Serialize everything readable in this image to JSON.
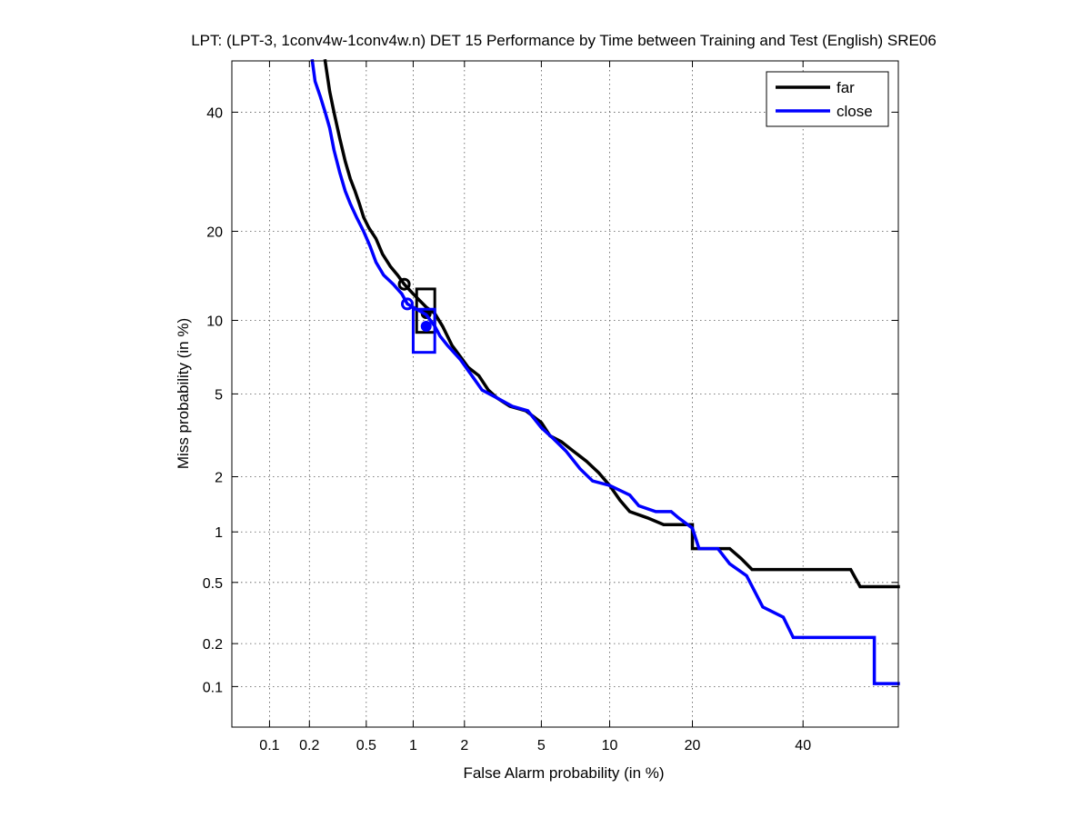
{
  "chart_data": {
    "type": "line",
    "title": "LPT: (LPT-3, 1conv4w-1conv4w.n) DET 15 Performance by Time between Training and Test (English) SRE06",
    "xlabel": "False Alarm probability (in %)",
    "ylabel": "Miss probability (in %)",
    "x_scale": "normal-deviate",
    "y_scale": "normal-deviate",
    "xlim": [
      0.05,
      60
    ],
    "ylim": [
      0.05,
      50
    ],
    "x_ticks": [
      0.1,
      0.2,
      0.5,
      1,
      2,
      5,
      10,
      20,
      40
    ],
    "x_tick_labels": [
      "0.1",
      "0.2",
      "0.5",
      "1",
      "2",
      "5",
      "10",
      "20",
      "40"
    ],
    "y_ticks": [
      0.1,
      0.2,
      0.5,
      1,
      2,
      5,
      10,
      20,
      40
    ],
    "y_tick_labels": [
      "0.1",
      "0.2",
      "0.5",
      "1",
      "2",
      "5",
      "10",
      "20",
      "40"
    ],
    "grid": true,
    "legend_position": "top-right",
    "series": [
      {
        "name": "far",
        "color": "#000000",
        "points": [
          [
            0.26,
            50
          ],
          [
            0.28,
            44
          ],
          [
            0.3,
            40
          ],
          [
            0.33,
            35
          ],
          [
            0.36,
            31
          ],
          [
            0.39,
            28
          ],
          [
            0.42,
            26
          ],
          [
            0.45,
            24
          ],
          [
            0.48,
            22
          ],
          [
            0.52,
            20.5
          ],
          [
            0.58,
            19
          ],
          [
            0.64,
            17
          ],
          [
            0.72,
            15.5
          ],
          [
            0.8,
            14.5
          ],
          [
            0.88,
            13.5
          ],
          [
            1.0,
            12.5
          ],
          [
            1.1,
            11.8
          ],
          [
            1.2,
            11.2
          ],
          [
            1.35,
            10.6
          ],
          [
            1.5,
            9.5
          ],
          [
            1.7,
            8.0
          ],
          [
            1.9,
            7.2
          ],
          [
            2.1,
            6.5
          ],
          [
            2.4,
            6.0
          ],
          [
            2.7,
            5.2
          ],
          [
            3.0,
            4.8
          ],
          [
            3.5,
            4.4
          ],
          [
            4.2,
            4.2
          ],
          [
            5.0,
            3.7
          ],
          [
            5.5,
            3.2
          ],
          [
            6.2,
            3.0
          ],
          [
            7.0,
            2.7
          ],
          [
            8.0,
            2.4
          ],
          [
            9.0,
            2.1
          ],
          [
            10.0,
            1.8
          ],
          [
            11.0,
            1.5
          ],
          [
            12.0,
            1.3
          ],
          [
            14.0,
            1.2
          ],
          [
            16.0,
            1.1
          ],
          [
            20.0,
            1.1
          ],
          [
            20.0,
            0.8
          ],
          [
            26.0,
            0.8
          ],
          [
            28.0,
            0.7
          ],
          [
            30.0,
            0.6
          ],
          [
            50.0,
            0.6
          ],
          [
            52.0,
            0.47
          ],
          [
            60.0,
            0.47
          ]
        ],
        "operating_point": [
          0.88,
          13.5
        ],
        "min_dcf_point": [
          1.2,
          10.6
        ],
        "confidence_box": [
          1.05,
          1.35,
          9.0,
          13.0
        ]
      },
      {
        "name": "close",
        "color": "#0000ff",
        "points": [
          [
            0.21,
            50
          ],
          [
            0.22,
            46
          ],
          [
            0.24,
            43
          ],
          [
            0.26,
            40
          ],
          [
            0.28,
            37
          ],
          [
            0.3,
            33
          ],
          [
            0.33,
            29
          ],
          [
            0.36,
            26
          ],
          [
            0.39,
            24
          ],
          [
            0.43,
            22
          ],
          [
            0.48,
            20
          ],
          [
            0.53,
            18
          ],
          [
            0.58,
            16
          ],
          [
            0.65,
            14.5
          ],
          [
            0.75,
            13.5
          ],
          [
            0.85,
            12.5
          ],
          [
            0.92,
            11.5
          ],
          [
            1.05,
            11.0
          ],
          [
            1.2,
            10.5
          ],
          [
            1.35,
            9.5
          ],
          [
            1.45,
            8.7
          ],
          [
            1.6,
            8.0
          ],
          [
            1.9,
            7.0
          ],
          [
            2.2,
            6.0
          ],
          [
            2.5,
            5.2
          ],
          [
            3.0,
            4.8
          ],
          [
            3.6,
            4.4
          ],
          [
            4.3,
            4.2
          ],
          [
            5.0,
            3.5
          ],
          [
            5.7,
            3.1
          ],
          [
            6.5,
            2.7
          ],
          [
            7.5,
            2.2
          ],
          [
            8.5,
            1.9
          ],
          [
            10.0,
            1.8
          ],
          [
            12.0,
            1.6
          ],
          [
            13.0,
            1.4
          ],
          [
            15.0,
            1.3
          ],
          [
            17.0,
            1.3
          ],
          [
            18.0,
            1.2
          ],
          [
            20.0,
            1.05
          ],
          [
            21.0,
            0.8
          ],
          [
            24.0,
            0.8
          ],
          [
            26.0,
            0.65
          ],
          [
            29.0,
            0.55
          ],
          [
            32.0,
            0.35
          ],
          [
            36.0,
            0.3
          ],
          [
            38.0,
            0.22
          ],
          [
            55.0,
            0.22
          ],
          [
            55.0,
            0.105
          ],
          [
            60.0,
            0.105
          ]
        ],
        "operating_point": [
          0.92,
          11.5
        ],
        "min_dcf_point": [
          1.2,
          9.5
        ],
        "confidence_box": [
          1.0,
          1.35,
          7.5,
          11.0
        ]
      }
    ]
  }
}
